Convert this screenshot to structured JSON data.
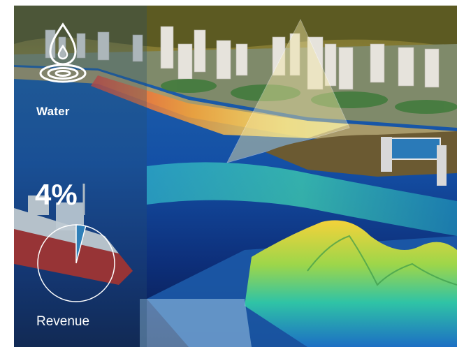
{
  "panel": {
    "icon": "water-drop-ripple-icon",
    "category": "Water",
    "percent_label": "4%",
    "percent_fraction": 0.04,
    "metric_label": "Revenue",
    "accent_color": "#2f7fb8"
  }
}
